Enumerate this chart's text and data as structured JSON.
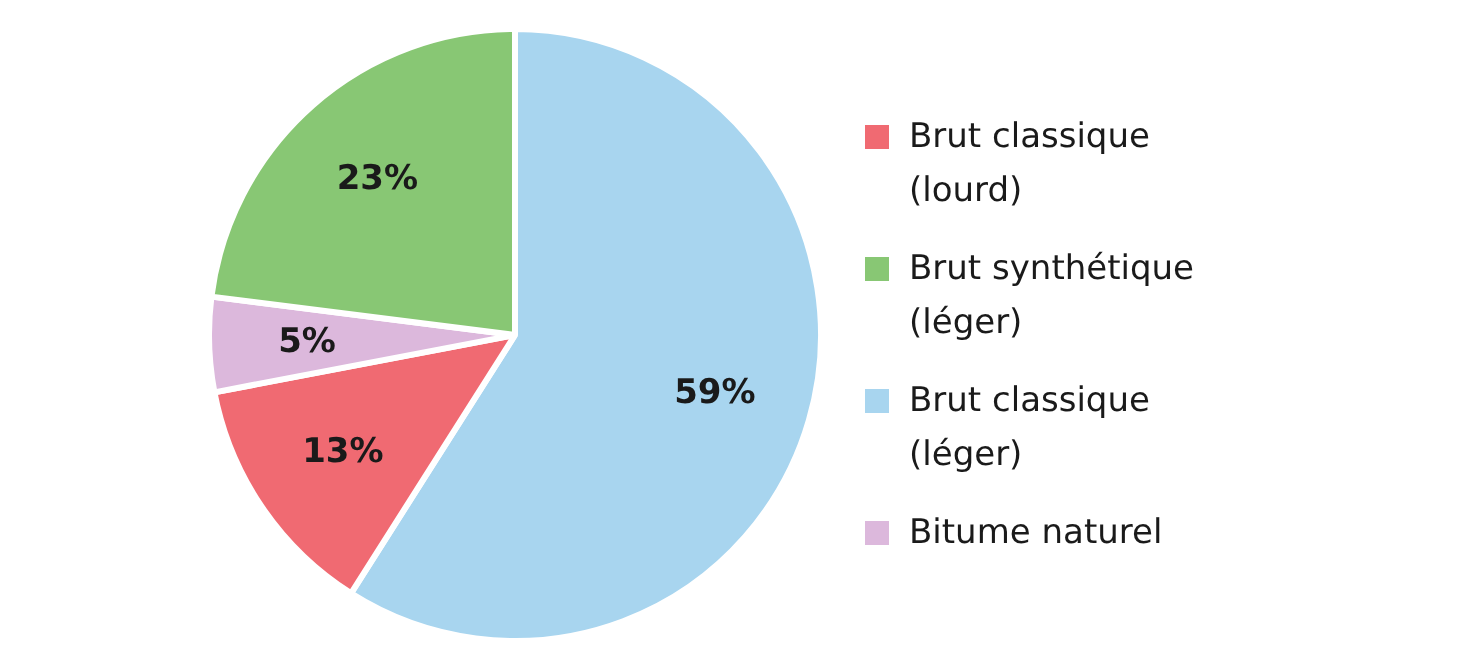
{
  "chart_data": {
    "type": "pie",
    "categories": [
      "Brut classique (léger)",
      "Brut classique (lourd)",
      "Bitume naturel",
      "Brut synthétique (léger)"
    ],
    "values": [
      59,
      13,
      5,
      23
    ],
    "colors": [
      "#a8d5ef",
      "#f06a72",
      "#dcb8dc",
      "#88c774"
    ],
    "value_labels": [
      "59%",
      "13%",
      "5%",
      "23%"
    ],
    "legend": "right"
  }
}
